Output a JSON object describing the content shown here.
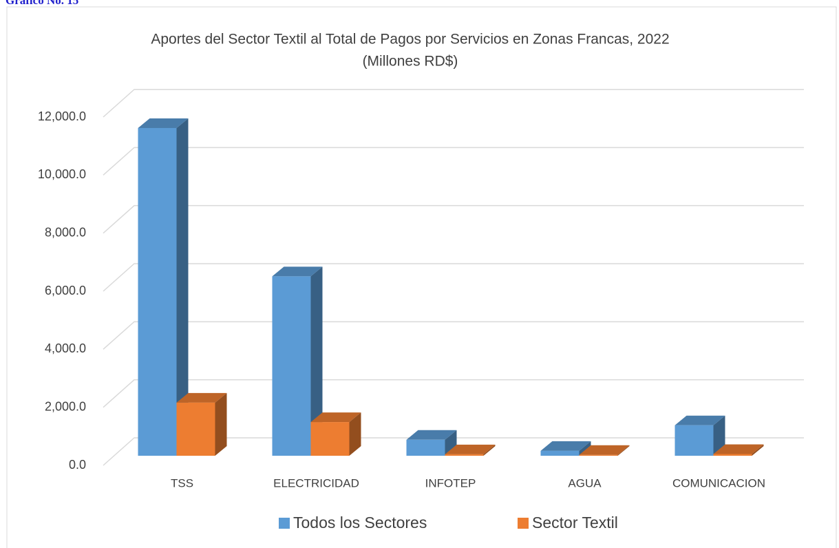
{
  "heading": "Gráfico No. 15",
  "chart_data": {
    "type": "bar3d",
    "title": "Aportes del Sector Textil al Total de Pagos por Servicios en Zonas Francas, 2022",
    "subtitle": "(Millones RD$)",
    "categories": [
      "TSS",
      "ELECTRICIDAD",
      "INFOTEP",
      "AGUA",
      "COMUNICACION"
    ],
    "series": [
      {
        "name": "Todos los Sectores",
        "color": "#5b9bd5",
        "values": [
          11290,
          6180,
          550,
          170,
          1050
        ]
      },
      {
        "name": "Sector Textil",
        "color": "#ed7d31",
        "values": [
          1830,
          1160,
          50,
          30,
          60
        ]
      }
    ],
    "ylim": [
      0,
      12000
    ],
    "yticks": [
      {
        "value": 0,
        "label": "0.0"
      },
      {
        "value": 2000,
        "label": "2,000.0"
      },
      {
        "value": 4000,
        "label": "4,000.0"
      },
      {
        "value": 6000,
        "label": "6,000.0"
      },
      {
        "value": 8000,
        "label": "8,000.0"
      },
      {
        "value": 10000,
        "label": "10,000.0"
      },
      {
        "value": 12000,
        "label": "12,000.0"
      }
    ],
    "grid": true,
    "legend": "bottom"
  }
}
